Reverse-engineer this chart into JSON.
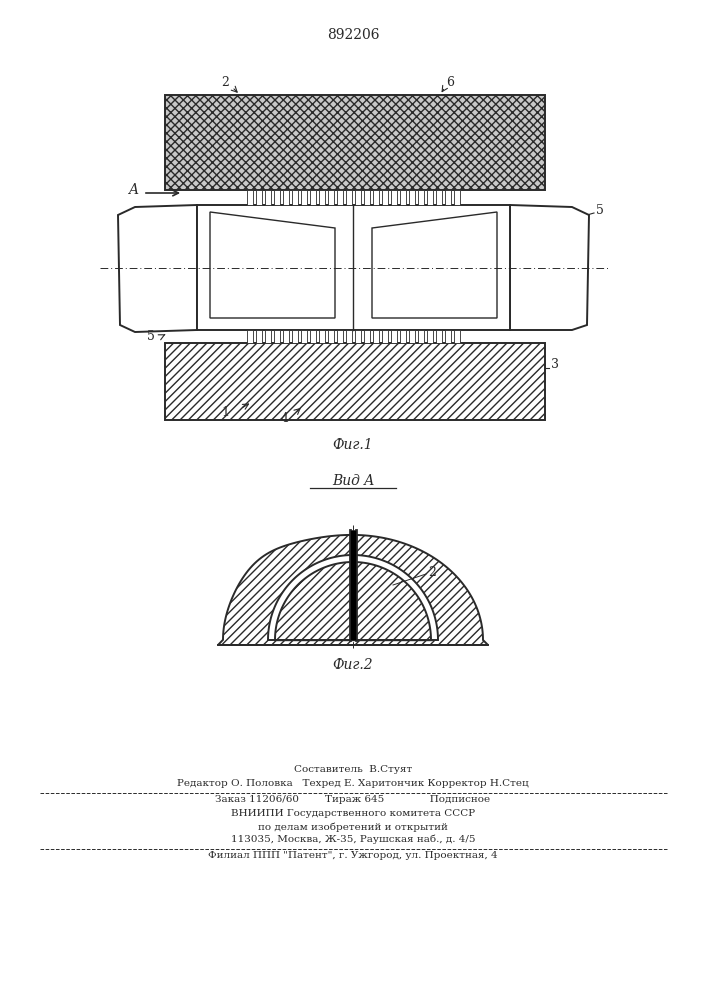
{
  "patent_number": "892206",
  "fig1_caption": "Фиг.1",
  "fig2_caption": "Фиг.2",
  "vid_a_caption": "Вид A",
  "label_A": "A",
  "label_2_fig1": "2",
  "label_6_fig1": "6",
  "label_5a": "5",
  "label_5b": "5",
  "label_3": "3",
  "label_1": "1",
  "label_4": "4",
  "label_2_fig2": "2",
  "footer_line1": "Составитель  В.Стуят",
  "footer_line2": "Редактор О. Половка   Техред Е. Харитончик Корректор Н.Стец",
  "footer_line3": "Заказ 11206/60        Тираж 645              Подписное",
  "footer_line4": "ВНИИПИ Государственного комитета СССР",
  "footer_line5": "по делам изобретений и открытий",
  "footer_line6": "113035, Москва, Ж-35, Раушская наб., д. 4/5",
  "footer_line7": "Филиал ППП \"Патент\", г. Ужгород, ул. Проектная, 4",
  "bg_color": "#ffffff",
  "line_color": "#2a2a2a"
}
